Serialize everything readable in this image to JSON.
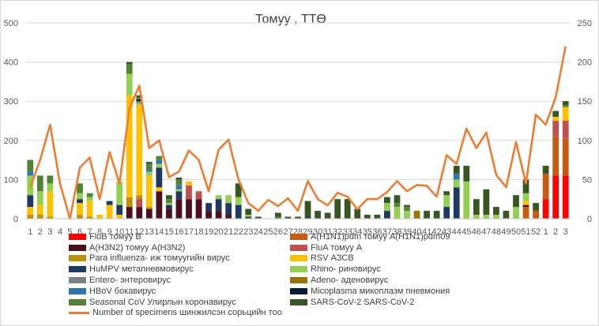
{
  "chart_data": {
    "type": "bar",
    "stacked": true,
    "title": "Томуу , ТТӨ",
    "x_tick_labels": [
      "1",
      "2",
      "3",
      "4",
      "5",
      "6",
      "7",
      "8",
      "9",
      "10",
      "11",
      "12",
      "13",
      "14",
      "15",
      "16",
      "17",
      "18",
      "19",
      "20",
      "21",
      "22",
      "23",
      "24",
      "25",
      "26",
      "27",
      "28",
      "29",
      "30",
      "31",
      "32",
      "33",
      "34",
      "35",
      "36",
      "37",
      "38",
      "39",
      "40",
      "41",
      "42",
      "43",
      "44",
      "45",
      "46",
      "47",
      "48",
      "49",
      "50",
      "51",
      "52",
      "1",
      "2",
      "3"
    ],
    "y_left": {
      "lim": [
        0,
        500
      ],
      "ticks": [
        "0",
        "100",
        "200",
        "300",
        "400",
        "500"
      ]
    },
    "y_right": {
      "lim": [
        0,
        250
      ],
      "ticks": [
        "0",
        "50",
        "100",
        "150",
        "200",
        "250"
      ]
    },
    "grid": true,
    "legend_position": "bottom",
    "series": [
      {
        "name": "FluB томуу B",
        "color": "#ff0000",
        "values": [
          0,
          0,
          0,
          0,
          0,
          0,
          0,
          0,
          0,
          0,
          0,
          0,
          0,
          0,
          0,
          0,
          0,
          0,
          0,
          0,
          0,
          0,
          0,
          0,
          0,
          0,
          0,
          0,
          0,
          0,
          0,
          0,
          0,
          0,
          0,
          0,
          0,
          0,
          0,
          0,
          0,
          0,
          0,
          0,
          0,
          0,
          0,
          0,
          0,
          0,
          0,
          0,
          50,
          110,
          110
        ]
      },
      {
        "name": "A(H1N1)pdm томуу A(H1N1)pdm09",
        "color": "#c55a11",
        "values": [
          0,
          0,
          0,
          0,
          0,
          0,
          0,
          0,
          0,
          0,
          0,
          0,
          0,
          0,
          0,
          0,
          0,
          0,
          0,
          0,
          0,
          0,
          0,
          0,
          0,
          0,
          0,
          0,
          0,
          0,
          0,
          0,
          0,
          0,
          0,
          0,
          0,
          0,
          0,
          0,
          0,
          0,
          0,
          0,
          0,
          0,
          0,
          0,
          0,
          0,
          30,
          20,
          65,
          100,
          95
        ]
      },
      {
        "name": "A(H3N2) томуу A(H3N2)",
        "color": "#4b1020",
        "values": [
          0,
          0,
          0,
          0,
          0,
          0,
          0,
          0,
          0,
          0,
          30,
          30,
          25,
          70,
          25,
          50,
          50,
          50,
          20,
          20,
          10,
          0,
          0,
          0,
          0,
          0,
          0,
          0,
          0,
          0,
          0,
          0,
          0,
          0,
          0,
          0,
          0,
          0,
          0,
          0,
          0,
          0,
          0,
          0,
          0,
          0,
          0,
          0,
          0,
          0,
          5,
          0,
          0,
          0,
          0
        ]
      },
      {
        "name": "FluA томуу A",
        "color": "#c0504d",
        "values": [
          0,
          0,
          0,
          0,
          0,
          0,
          0,
          0,
          0,
          0,
          0,
          20,
          0,
          0,
          0,
          0,
          35,
          20,
          0,
          0,
          0,
          0,
          0,
          0,
          0,
          0,
          0,
          0,
          0,
          0,
          0,
          0,
          0,
          0,
          0,
          0,
          0,
          0,
          0,
          0,
          0,
          0,
          0,
          0,
          0,
          0,
          0,
          0,
          0,
          0,
          0,
          0,
          0,
          40,
          45
        ]
      },
      {
        "name": "Para influenza- иж томуугийн вирус",
        "color": "#bf9000",
        "values": [
          10,
          10,
          5,
          0,
          0,
          10,
          5,
          0,
          0,
          0,
          25,
          10,
          5,
          0,
          0,
          0,
          0,
          0,
          0,
          0,
          0,
          0,
          0,
          0,
          0,
          0,
          0,
          0,
          0,
          0,
          0,
          0,
          0,
          0,
          0,
          0,
          0,
          0,
          0,
          0,
          0,
          0,
          0,
          0,
          0,
          0,
          0,
          0,
          0,
          0,
          0,
          0,
          0,
          0,
          0
        ]
      },
      {
        "name": "RSV АЗСВ",
        "color": "#ffc000",
        "values": [
          20,
          25,
          65,
          0,
          0,
          30,
          40,
          10,
          35,
          10,
          260,
          230,
          80,
          10,
          0,
          0,
          10,
          0,
          0,
          0,
          0,
          0,
          0,
          0,
          0,
          0,
          0,
          0,
          0,
          0,
          0,
          0,
          0,
          0,
          0,
          0,
          0,
          0,
          0,
          0,
          0,
          0,
          0,
          0,
          0,
          0,
          0,
          0,
          0,
          0,
          10,
          0,
          0,
          10,
          35
        ]
      },
      {
        "name": "HuMPV метапневмовирус",
        "color": "#1f3864",
        "values": [
          30,
          0,
          0,
          0,
          0,
          10,
          0,
          0,
          10,
          25,
          0,
          0,
          0,
          50,
          10,
          20,
          0,
          0,
          20,
          30,
          30,
          35,
          5,
          0,
          0,
          0,
          0,
          0,
          5,
          0,
          0,
          0,
          0,
          0,
          0,
          0,
          20,
          0,
          0,
          0,
          0,
          0,
          30,
          80,
          0,
          0,
          0,
          0,
          0,
          0,
          0,
          0,
          0,
          0,
          0
        ]
      },
      {
        "name": "Rhino- риновирус",
        "color": "#92d050",
        "values": [
          50,
          35,
          20,
          0,
          0,
          15,
          10,
          0,
          0,
          60,
          55,
          5,
          10,
          10,
          5,
          5,
          0,
          0,
          0,
          10,
          20,
          20,
          5,
          0,
          0,
          0,
          0,
          0,
          0,
          0,
          0,
          0,
          0,
          0,
          0,
          0,
          20,
          30,
          20,
          0,
          0,
          0,
          30,
          20,
          95,
          10,
          10,
          10,
          0,
          30,
          20,
          0,
          0,
          0,
          0
        ]
      },
      {
        "name": "Entero- энтеровирус",
        "color": "#7f7f7f",
        "values": [
          0,
          0,
          0,
          0,
          0,
          0,
          0,
          0,
          0,
          0,
          0,
          5,
          0,
          0,
          0,
          0,
          0,
          0,
          0,
          0,
          0,
          0,
          0,
          0,
          0,
          0,
          0,
          0,
          0,
          0,
          0,
          0,
          0,
          0,
          0,
          0,
          0,
          0,
          0,
          0,
          0,
          0,
          0,
          0,
          0,
          0,
          0,
          0,
          0,
          0,
          0,
          0,
          0,
          0,
          0
        ]
      },
      {
        "name": "Adeno- аденовирус",
        "color": "#997300",
        "values": [
          0,
          0,
          0,
          0,
          0,
          0,
          0,
          0,
          0,
          0,
          0,
          0,
          0,
          0,
          0,
          0,
          0,
          0,
          0,
          0,
          0,
          0,
          0,
          0,
          0,
          0,
          0,
          0,
          0,
          0,
          0,
          0,
          0,
          0,
          0,
          0,
          0,
          0,
          0,
          20,
          0,
          0,
          0,
          0,
          0,
          0,
          0,
          0,
          0,
          0,
          0,
          0,
          0,
          0,
          0
        ]
      },
      {
        "name": "HBoV бокавирус",
        "color": "#2e75b6",
        "values": [
          10,
          0,
          0,
          0,
          0,
          0,
          0,
          0,
          0,
          0,
          0,
          0,
          5,
          10,
          0,
          10,
          0,
          0,
          0,
          0,
          0,
          0,
          0,
          0,
          0,
          0,
          0,
          0,
          0,
          0,
          0,
          0,
          0,
          0,
          0,
          0,
          0,
          0,
          0,
          0,
          0,
          0,
          0,
          15,
          0,
          0,
          0,
          0,
          0,
          0,
          0,
          0,
          0,
          0,
          0
        ]
      },
      {
        "name": "Micoplasma микоплазм пневмония",
        "color": "#0a1a3a",
        "values": [
          0,
          0,
          0,
          0,
          0,
          0,
          0,
          0,
          0,
          0,
          0,
          5,
          0,
          0,
          0,
          0,
          0,
          0,
          0,
          0,
          0,
          0,
          0,
          0,
          0,
          0,
          0,
          0,
          0,
          0,
          0,
          0,
          0,
          0,
          0,
          0,
          0,
          0,
          0,
          0,
          0,
          0,
          0,
          0,
          0,
          0,
          0,
          0,
          0,
          0,
          0,
          0,
          0,
          0,
          0
        ]
      },
      {
        "name": "Seasonal CoV Улирлын коронавирус",
        "color": "#548235",
        "values": [
          30,
          40,
          20,
          0,
          0,
          25,
          10,
          0,
          0,
          0,
          25,
          5,
          15,
          10,
          10,
          15,
          0,
          0,
          0,
          0,
          0,
          0,
          0,
          0,
          0,
          5,
          0,
          0,
          0,
          0,
          0,
          0,
          0,
          0,
          0,
          0,
          0,
          10,
          10,
          0,
          0,
          0,
          0,
          0,
          0,
          0,
          0,
          0,
          0,
          0,
          0,
          0,
          0,
          0,
          5
        ]
      },
      {
        "name": "SARS-CoV-2 SARS-CoV-2",
        "color": "#375623",
        "values": [
          0,
          0,
          0,
          0,
          0,
          0,
          0,
          0,
          0,
          0,
          5,
          5,
          5,
          0,
          10,
          5,
          0,
          0,
          0,
          0,
          0,
          35,
          15,
          5,
          0,
          10,
          5,
          5,
          40,
          20,
          15,
          50,
          50,
          25,
          10,
          10,
          15,
          20,
          5,
          0,
          20,
          20,
          10,
          20,
          40,
          40,
          65,
          20,
          20,
          30,
          35,
          20,
          20,
          15,
          10
        ]
      }
    ],
    "line_series": {
      "name": "Number of specimens шинжилсэн сорьцийн тоо",
      "color": "#ed7d31",
      "axis": "right",
      "values": [
        40,
        75,
        120,
        45,
        0,
        65,
        78,
        25,
        85,
        45,
        140,
        170,
        90,
        100,
        53,
        60,
        87,
        75,
        35,
        88,
        101,
        50,
        20,
        10,
        24,
        16,
        26,
        10,
        48,
        25,
        17,
        33,
        28,
        12,
        25,
        25,
        34,
        48,
        35,
        43,
        42,
        28,
        81,
        70,
        115,
        90,
        110,
        56,
        40,
        98,
        45,
        133,
        120,
        155,
        220
      ]
    }
  }
}
